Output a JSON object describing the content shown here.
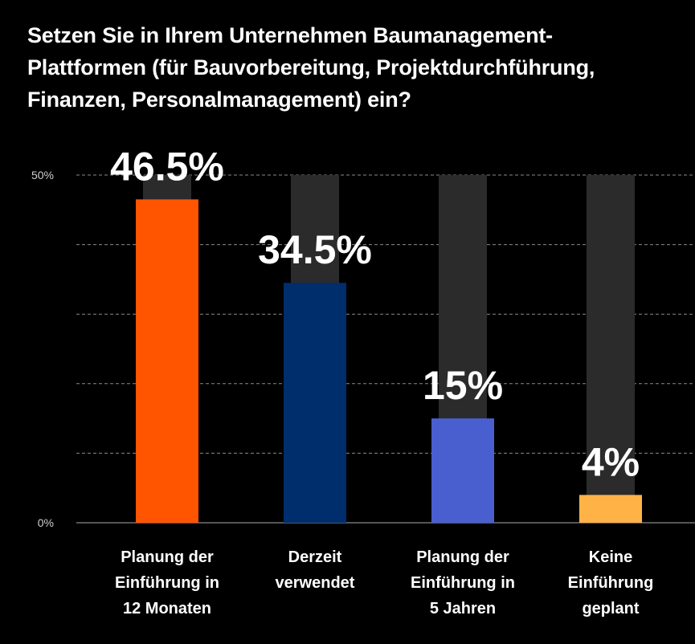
{
  "title": "Setzen Sie in Ihrem Unternehmen Baumanagement-Plattformen (für Bauvorbereitung, Projektdurchführung, Finanzen, Personalmanagement) ein?",
  "colors": {
    "background": "#000000",
    "track": "#2b2b2b",
    "grid": "#8a8a8a",
    "text": "#ffffff"
  },
  "chart_data": {
    "type": "bar",
    "title": "Setzen Sie in Ihrem Unternehmen Baumanagement-Plattformen (für Bauvorbereitung, Projektdurchführung, Finanzen, Personalmanagement) ein?",
    "categories": [
      "Planung der Einführung in 12 Monaten",
      "Derzeit verwendet",
      "Planung der Einführung in 5 Jahren",
      "Keine Einführung geplant"
    ],
    "category_lines": [
      [
        "Planung der",
        "Einführung in",
        "12 Monaten"
      ],
      [
        "Derzeit",
        "verwendet"
      ],
      [
        "Planung der",
        "Einführung in",
        "5 Jahren"
      ],
      [
        "Keine",
        "Einführung",
        "geplant"
      ]
    ],
    "values": [
      46.5,
      34.5,
      15,
      4
    ],
    "value_labels": [
      "46.5%",
      "34.5%",
      "15%",
      "4%"
    ],
    "bar_colors": [
      "#ff5400",
      "#002d6b",
      "#4a5fcf",
      "#ffb347"
    ],
    "ylim": [
      0,
      50
    ],
    "ytick_labels": [
      "50%",
      "0%"
    ],
    "grid": true,
    "xlabel": "",
    "ylabel": ""
  }
}
